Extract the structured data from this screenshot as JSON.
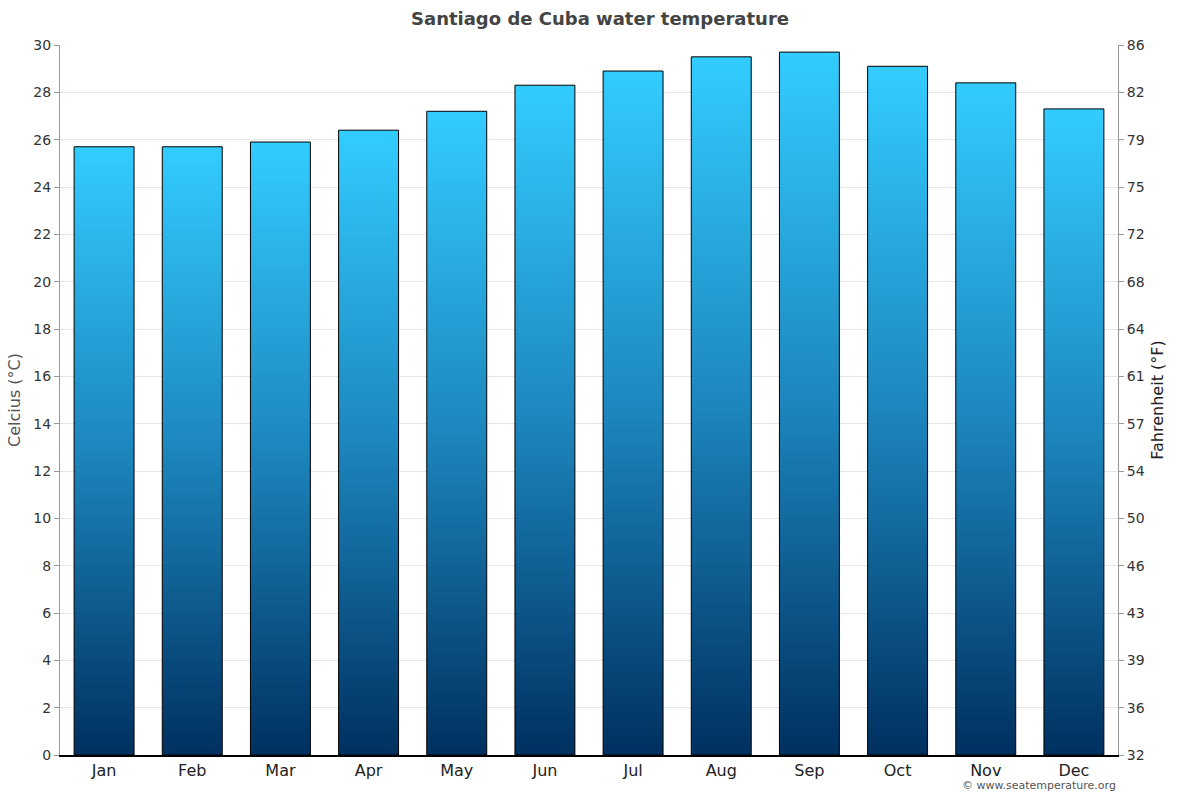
{
  "chart_data": {
    "type": "bar",
    "title": "Santiago de Cuba water temperature",
    "ylabel": "Celcius (°C)",
    "y2label": "Fahrenheit (°F)",
    "annotation": "© www.seatemperature.org",
    "categories": [
      "Jan",
      "Feb",
      "Mar",
      "Apr",
      "May",
      "Jun",
      "Jul",
      "Aug",
      "Sep",
      "Oct",
      "Nov",
      "Dec"
    ],
    "values": [
      25.7,
      25.7,
      25.9,
      26.4,
      27.2,
      28.3,
      28.9,
      29.5,
      29.7,
      29.1,
      28.4,
      27.3
    ],
    "color": "#33ccff",
    "ylim": [
      0,
      30
    ],
    "yticks": [
      0,
      2,
      4,
      6,
      8,
      10,
      12,
      14,
      16,
      18,
      20,
      22,
      24,
      26,
      28,
      30
    ],
    "y2lim": [
      32,
      86
    ],
    "y2ticks": [
      32,
      {
        "value": 35.6,
        "label": "36"
      },
      {
        "value": 39.2,
        "label": "39"
      },
      {
        "value": 42.8,
        "label": "43"
      },
      {
        "value": 46.4,
        "label": "46"
      },
      50,
      {
        "value": 53.6,
        "label": "54"
      },
      {
        "value": 57.2,
        "label": "57"
      },
      {
        "value": 60.8,
        "label": "61"
      },
      {
        "value": 64.4,
        "label": "64"
      },
      68,
      {
        "value": 71.6,
        "label": "72"
      },
      {
        "value": 75.2,
        "label": "75"
      },
      {
        "value": 78.8,
        "label": "79"
      },
      {
        "value": 82.4,
        "label": "82"
      },
      86
    ],
    "grid": true
  }
}
